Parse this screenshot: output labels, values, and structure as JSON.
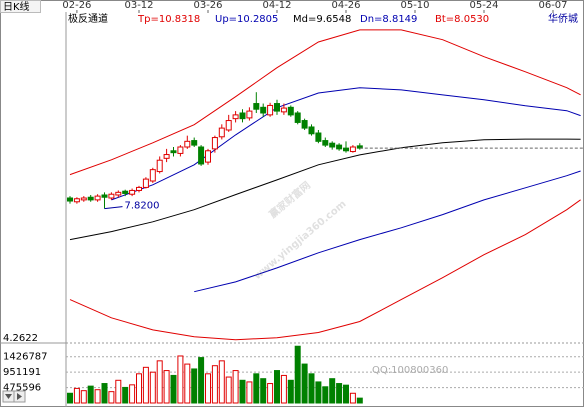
{
  "chart_data": {
    "type": "candlestick",
    "title": "日K线",
    "indicator": "极反通道",
    "stock": "华侨城",
    "xlim": [
      0,
      74
    ],
    "xticks": [
      {
        "value": 1,
        "label": "02-26"
      },
      {
        "value": 10,
        "label": "03-12"
      },
      {
        "value": 20,
        "label": "03-26"
      },
      {
        "value": 30,
        "label": "04-12"
      },
      {
        "value": 40,
        "label": "04-26"
      },
      {
        "value": 50,
        "label": "05-10"
      },
      {
        "value": 60,
        "label": "05-24"
      },
      {
        "value": 70,
        "label": "06-07"
      }
    ],
    "ylim": [
      4.2622,
      12.97
    ],
    "yticks": [
      4.2622
    ],
    "up_color": "#e00000",
    "down_color": "#008000",
    "candles": {
      "open": [
        8.1,
        8.0,
        8.05,
        8.12,
        8.05,
        8.18,
        8.1,
        8.18,
        8.28,
        8.2,
        8.3,
        8.38,
        8.55,
        8.8,
        9.15,
        9.35,
        9.28,
        9.45,
        9.62,
        9.45,
        9.05,
        9.4,
        9.72,
        9.9,
        10.2,
        10.35,
        10.22,
        10.6,
        10.5,
        10.3,
        10.6,
        10.38,
        10.5,
        10.35,
        10.15,
        9.98,
        9.82,
        9.62,
        9.55,
        9.5,
        9.42,
        9.33,
        9.48
      ],
      "high": [
        8.15,
        8.12,
        8.15,
        8.18,
        8.2,
        8.25,
        8.25,
        8.3,
        8.32,
        8.35,
        8.42,
        8.65,
        8.9,
        9.2,
        9.4,
        9.45,
        9.5,
        9.75,
        9.7,
        9.5,
        9.4,
        9.75,
        10.05,
        10.3,
        10.4,
        10.45,
        10.5,
        10.9,
        10.6,
        10.62,
        10.7,
        10.6,
        10.55,
        10.4,
        10.2,
        10.05,
        9.9,
        9.7,
        9.6,
        9.55,
        9.6,
        9.5,
        9.55
      ],
      "low": [
        7.95,
        7.95,
        8.0,
        8.0,
        8.0,
        7.82,
        8.05,
        8.12,
        8.15,
        8.15,
        8.25,
        8.35,
        8.5,
        8.75,
        9.05,
        9.2,
        9.2,
        9.4,
        9.45,
        8.95,
        8.98,
        9.3,
        9.65,
        9.85,
        10.1,
        10.1,
        10.15,
        10.35,
        10.25,
        10.25,
        10.3,
        10.3,
        10.25,
        10.05,
        9.9,
        9.75,
        9.55,
        9.45,
        9.38,
        9.35,
        9.3,
        9.3,
        9.38
      ],
      "close": [
        8.02,
        8.08,
        8.1,
        8.05,
        8.15,
        8.12,
        8.2,
        8.25,
        8.22,
        8.3,
        8.38,
        8.6,
        8.85,
        9.1,
        9.25,
        9.3,
        9.45,
        9.6,
        9.5,
        9.0,
        9.35,
        9.7,
        9.95,
        10.15,
        10.3,
        10.2,
        10.4,
        10.45,
        10.35,
        10.55,
        10.4,
        10.48,
        10.3,
        10.1,
        9.95,
        9.8,
        9.6,
        9.5,
        9.45,
        9.4,
        9.35,
        9.45,
        9.42
      ]
    },
    "bands": {
      "x": [
        0,
        6,
        12,
        18,
        24,
        30,
        36,
        42,
        48,
        54,
        60,
        66,
        72,
        74
      ],
      "series": [
        {
          "name": "Tp=10.8318",
          "color": "#e00000",
          "values": [
            8.72,
            9.11,
            9.56,
            10.04,
            10.78,
            11.55,
            12.23,
            12.55,
            12.55,
            12.29,
            11.84,
            11.44,
            11.02,
            10.8318
          ]
        },
        {
          "name": "Up=10.2805",
          "color": "#0000b0",
          "values": [
            null,
            8.05,
            8.45,
            8.98,
            9.77,
            10.49,
            10.88,
            11.02,
            10.96,
            10.83,
            10.7,
            10.54,
            10.41,
            10.2805
          ]
        },
        {
          "name": "Md=9.6548",
          "color": "#000000",
          "values": [
            7.0,
            7.21,
            7.47,
            7.79,
            8.19,
            8.58,
            8.98,
            9.24,
            9.43,
            9.56,
            9.64,
            9.66,
            9.66,
            9.6548
          ]
        },
        {
          "name": "Dn=8.8149",
          "color": "#0000b0",
          "values": [
            null,
            null,
            null,
            5.62,
            5.88,
            6.25,
            6.65,
            7.0,
            7.31,
            7.66,
            8.05,
            8.37,
            8.69,
            8.8149
          ]
        },
        {
          "name": "Bt=8.0530",
          "color": "#e00000",
          "values": [
            5.41,
            4.93,
            4.61,
            4.43,
            4.35,
            4.4,
            4.54,
            4.83,
            5.41,
            5.99,
            6.6,
            7.13,
            7.79,
            8.053
          ]
        }
      ]
    },
    "annotations": [
      {
        "label": "7.8200",
        "x": 5,
        "value": 7.82
      }
    ],
    "volume": {
      "ylim": [
        0,
        1850000
      ],
      "yticks": [
        475596,
        951191,
        1426787
      ],
      "values": [
        300000,
        450000,
        380000,
        520000,
        410000,
        600000,
        350000,
        700000,
        480000,
        560000,
        900000,
        1100000,
        950000,
        1300000,
        1000000,
        850000,
        1450000,
        1200000,
        1050000,
        1400000,
        900000,
        1150000,
        1300000,
        800000,
        1000000,
        700000,
        650000,
        900000,
        750000,
        600000,
        1000000,
        850000,
        700000,
        1750000,
        1200000,
        900000,
        650000,
        500000,
        750000,
        600000,
        550000,
        300000,
        150000
      ]
    }
  },
  "watermark": {
    "site": "赢家财富网",
    "url": "www.yingjia360.com",
    "qq": "QQ:100800360"
  }
}
